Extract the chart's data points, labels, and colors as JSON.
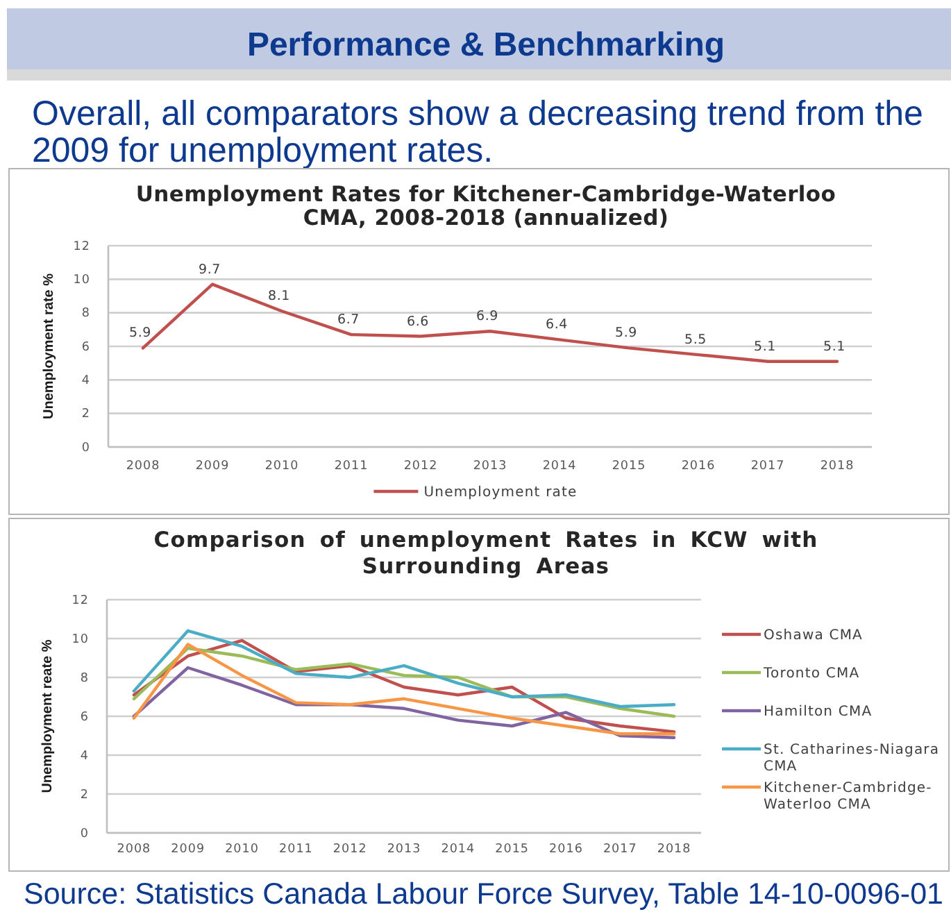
{
  "chart_data": [
    {
      "type": "other",
      "title": "Performance & Benchmarking",
      "subtitle": "Overall, all comparators show a decreasing trend from the 2009 for unemployment rates."
    },
    {
      "type": "line",
      "title": "Unemployment Rates for Kitchener-Cambridge-Waterloo CMA, 2008-2018 (annualized)",
      "ylabel": "Unemployment rate %",
      "categories": [
        "2008",
        "2009",
        "2010",
        "2011",
        "2012",
        "2013",
        "2014",
        "2015",
        "2016",
        "2017",
        "2018"
      ],
      "series": [
        {
          "name": "Unemployment rate",
          "color": "#c0504d",
          "values": [
            5.9,
            9.7,
            8.1,
            6.7,
            6.6,
            6.9,
            6.4,
            5.9,
            5.5,
            5.1,
            5.1
          ]
        }
      ],
      "ylim": [
        0,
        12
      ],
      "yticks": [
        0,
        2,
        4,
        6,
        8,
        10,
        12
      ],
      "grid": "y",
      "legend": "bottom",
      "data_labels": true
    },
    {
      "type": "line",
      "title": "Comparison of unemployment Rates in KCW with Surrounding Areas",
      "ylabel": "Unemployment reate %",
      "categories": [
        "2008",
        "2009",
        "2010",
        "2011",
        "2012",
        "2013",
        "2014",
        "2015",
        "2016",
        "2017",
        "2018"
      ],
      "series": [
        {
          "name": "Oshawa CMA",
          "color": "#c0504d",
          "values": [
            7.1,
            9.1,
            9.9,
            8.3,
            8.6,
            7.5,
            7.1,
            7.5,
            5.9,
            5.5,
            5.2
          ]
        },
        {
          "name": "Toronto CMA",
          "color": "#9bbb59",
          "values": [
            6.9,
            9.5,
            9.1,
            8.4,
            8.7,
            8.1,
            8.0,
            7.0,
            7.0,
            6.4,
            6.0
          ]
        },
        {
          "name": "Hamilton CMA",
          "color": "#8064a2",
          "values": [
            6.0,
            8.5,
            7.6,
            6.6,
            6.6,
            6.4,
            5.8,
            5.5,
            6.2,
            5.0,
            4.9
          ]
        },
        {
          "name": "St. Catharines-Niagara CMA",
          "color": "#4bacc6",
          "values": [
            7.3,
            10.4,
            9.6,
            8.2,
            8.0,
            8.6,
            7.7,
            7.0,
            7.1,
            6.5,
            6.6
          ]
        },
        {
          "name": "Kitchener-Cambridge-Waterloo CMA",
          "color": "#f79646",
          "values": [
            5.9,
            9.7,
            8.1,
            6.7,
            6.6,
            6.9,
            6.4,
            5.9,
            5.5,
            5.1,
            5.1
          ]
        }
      ],
      "ylim": [
        0,
        12
      ],
      "yticks": [
        0,
        2,
        4,
        6,
        8,
        10,
        12
      ],
      "grid": "y",
      "legend": "right",
      "annotations": [
        "Source: Statistics Canada Labour Force Survey, Table 14-10-0096-01"
      ]
    }
  ]
}
